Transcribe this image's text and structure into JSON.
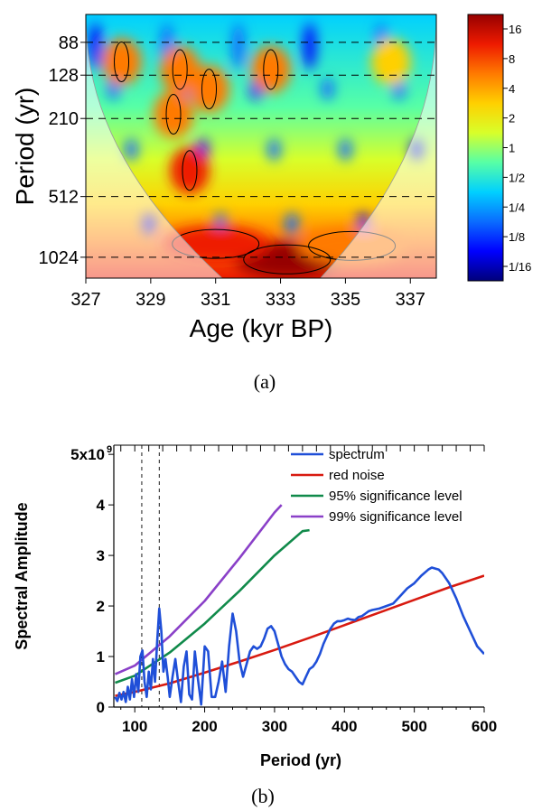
{
  "chart_data": [
    {
      "type": "heatmap",
      "caption": "(a)",
      "xlabel": "Age (kyr BP)",
      "ylabel": "Period (yr)",
      "x_ticks": [
        "327",
        "329",
        "331",
        "333",
        "335",
        "337"
      ],
      "x_tick_values": [
        327,
        329,
        331,
        333,
        335,
        337
      ],
      "xlim": [
        327,
        337.8
      ],
      "y_ticks": [
        "88",
        "128",
        "210",
        "512",
        "1024"
      ],
      "y_tick_values": [
        88,
        128,
        210,
        512,
        1024
      ],
      "y_scale": "log2",
      "ylim": [
        64,
        1300
      ],
      "dashed_periods": [
        88,
        128,
        210,
        512,
        1024
      ],
      "colorbar": {
        "ticks": [
          "16",
          "8",
          "4",
          "2",
          "1",
          "1/2",
          "1/4",
          "1/8",
          "1/16"
        ],
        "tick_values": [
          16,
          8,
          4,
          2,
          1,
          0.5,
          0.25,
          0.125,
          0.0625
        ],
        "scale": "log2",
        "colors": [
          "#00007a",
          "#0000ff",
          "#0a6cff",
          "#00d0ff",
          "#57ffa6",
          "#d8ff2a",
          "#ffd000",
          "#ff7a00",
          "#ee1a00",
          "#960000"
        ]
      },
      "features": [
        {
          "age": 333.2,
          "period": 1050,
          "power": 16
        },
        {
          "age": 331.0,
          "period": 880,
          "power": 8
        },
        {
          "age": 335.2,
          "period": 900,
          "power": 6
        },
        {
          "age": 330.2,
          "period": 380,
          "power": 8
        },
        {
          "age": 329.7,
          "period": 200,
          "power": 6
        },
        {
          "age": 329.9,
          "period": 120,
          "power": 6
        },
        {
          "age": 332.7,
          "period": 120,
          "power": 4
        },
        {
          "age": 328.1,
          "period": 110,
          "power": 4
        },
        {
          "age": 330.8,
          "period": 150,
          "power": 4
        },
        {
          "age": 336.4,
          "period": 110,
          "power": 3
        }
      ]
    },
    {
      "type": "line",
      "caption": "(b)",
      "xlabel": "Period (yr)",
      "ylabel": "Spectral Amplitude",
      "xlim": [
        70,
        600
      ],
      "ylim": [
        0,
        5
      ],
      "x_ticks": [
        "100",
        "200",
        "300",
        "400",
        "500",
        "600"
      ],
      "x_tick_values": [
        100,
        200,
        300,
        400,
        500,
        600
      ],
      "y_ticks": [
        "0",
        "1",
        "2",
        "3",
        "4",
        "5x10"
      ],
      "y_tick_values": [
        0,
        1,
        2,
        3,
        4,
        5
      ],
      "y_top_exponent": "9",
      "legend_position": "top-right",
      "dashed_periods": [
        110,
        135
      ],
      "series": [
        {
          "name": "spectrum",
          "color": "#1f4fd8",
          "x": [
            72,
            75,
            78,
            81,
            84,
            87,
            90,
            93,
            96,
            99,
            102,
            105,
            108,
            111,
            114,
            117,
            120,
            123,
            126,
            129,
            132,
            135,
            138,
            141,
            144,
            147,
            150,
            154,
            158,
            162,
            166,
            170,
            174,
            178,
            182,
            186,
            190,
            195,
            200,
            205,
            210,
            215,
            220,
            225,
            230,
            235,
            240,
            245,
            250,
            255,
            260,
            265,
            270,
            275,
            280,
            285,
            290,
            295,
            300,
            305,
            310,
            315,
            320,
            325,
            330,
            335,
            340,
            345,
            350,
            355,
            360,
            365,
            370,
            375,
            380,
            385,
            390,
            395,
            400,
            405,
            410,
            415,
            420,
            425,
            430,
            435,
            440,
            450,
            460,
            470,
            480,
            490,
            500,
            510,
            520,
            525,
            530,
            535,
            540,
            550,
            560,
            570,
            580,
            590,
            600
          ],
          "y": [
            0.2,
            0.12,
            0.28,
            0.15,
            0.3,
            0.1,
            0.4,
            0.15,
            0.55,
            0.2,
            0.65,
            0.3,
            1.0,
            1.12,
            0.5,
            0.2,
            0.7,
            0.35,
            0.95,
            0.5,
            1.3,
            1.95,
            1.5,
            0.7,
            0.95,
            0.6,
            0.2,
            0.6,
            0.95,
            0.5,
            0.1,
            0.8,
            1.1,
            0.25,
            0.15,
            1.1,
            0.6,
            0.05,
            1.2,
            1.1,
            0.2,
            0.2,
            0.5,
            0.9,
            0.3,
            1.2,
            1.85,
            1.5,
            0.9,
            0.6,
            0.85,
            1.1,
            1.2,
            1.15,
            1.2,
            1.35,
            1.55,
            1.6,
            1.5,
            1.25,
            1.0,
            0.85,
            0.75,
            0.7,
            0.6,
            0.5,
            0.45,
            0.6,
            0.75,
            0.8,
            0.9,
            1.05,
            1.25,
            1.4,
            1.55,
            1.65,
            1.7,
            1.7,
            1.72,
            1.75,
            1.73,
            1.72,
            1.78,
            1.8,
            1.85,
            1.9,
            1.92,
            1.95,
            2.0,
            2.05,
            2.2,
            2.35,
            2.45,
            2.6,
            2.72,
            2.76,
            2.74,
            2.72,
            2.65,
            2.45,
            2.15,
            1.8,
            1.5,
            1.2,
            1.05
          ]
        },
        {
          "name": "red noise",
          "color": "#d81a10",
          "x": [
            72,
            100,
            150,
            200,
            250,
            300,
            350,
            400,
            450,
            500,
            550,
            600
          ],
          "y": [
            0.22,
            0.3,
            0.47,
            0.68,
            0.9,
            1.13,
            1.37,
            1.62,
            1.87,
            2.12,
            2.37,
            2.6
          ]
        },
        {
          "name": "95% significance level",
          "color": "#108a4a",
          "x": [
            72,
            100,
            150,
            200,
            250,
            300,
            340,
            350
          ],
          "y": [
            0.48,
            0.62,
            1.08,
            1.65,
            2.3,
            3.0,
            3.48,
            3.5
          ]
        },
        {
          "name": "99% significance level",
          "color": "#8a40c8",
          "x": [
            72,
            100,
            150,
            200,
            250,
            300,
            310
          ],
          "y": [
            0.65,
            0.82,
            1.4,
            2.1,
            2.95,
            3.85,
            4.0
          ]
        }
      ]
    }
  ]
}
